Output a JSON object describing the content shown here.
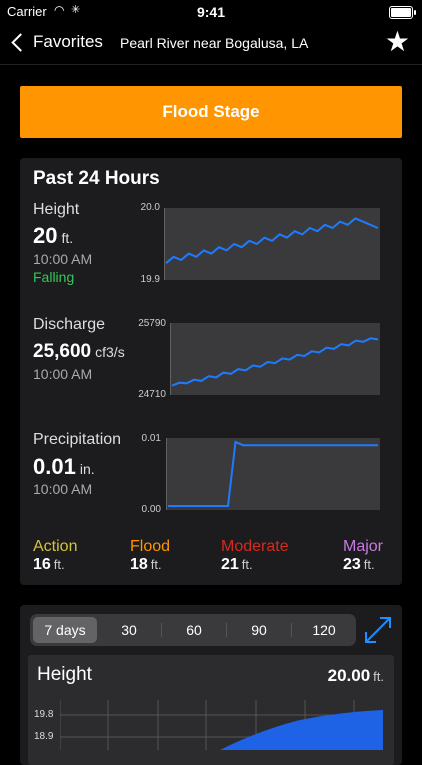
{
  "status": {
    "carrier": "Carrier",
    "time": "9:41"
  },
  "nav": {
    "back_label": "Favorites",
    "title": "Pearl River near Bogalusa, LA",
    "star_icon": "star-icon"
  },
  "banner": {
    "label": "Flood Stage",
    "color": "#ff9500"
  },
  "past24": {
    "title": "Past 24 Hours",
    "height": {
      "label": "Height",
      "value": "20",
      "unit": "ft.",
      "time": "10:00 AM",
      "trend": "Falling",
      "ymax": "20.0",
      "ymin": "19.9"
    },
    "discharge": {
      "label": "Discharge",
      "value": "25,600",
      "unit": "cf3/s",
      "time": "10:00 AM",
      "ymax": "25790",
      "ymin": "24710"
    },
    "precip": {
      "label": "Precipitation",
      "value": "0.01",
      "unit": "in.",
      "time": "10:00 AM",
      "ymax": "0.01",
      "ymin": "0.00"
    }
  },
  "levels": [
    {
      "name": "Action",
      "value": "16",
      "unit": "ft.",
      "color": "#d4c23a"
    },
    {
      "name": "Flood",
      "value": "18",
      "unit": "ft.",
      "color": "#ff9500"
    },
    {
      "name": "Moderate",
      "value": "21",
      "unit": "ft.",
      "color": "#d62a1e"
    },
    {
      "name": "Major",
      "value": "23",
      "unit": "ft.",
      "color": "#c67ae0"
    }
  ],
  "range": {
    "options": [
      "7 days",
      "30",
      "60",
      "90",
      "120"
    ],
    "selected": "7 days"
  },
  "history": {
    "title": "Height",
    "value": "20.00",
    "unit": "ft.",
    "yticks": [
      "19.8",
      "18.9"
    ]
  },
  "chart_data": [
    {
      "type": "line",
      "title": "Height",
      "ylim": [
        19.9,
        20.0
      ],
      "values": [
        19.92,
        19.93,
        19.925,
        19.935,
        19.93,
        19.94,
        19.935,
        19.945,
        19.94,
        19.95,
        19.945,
        19.955,
        19.95,
        19.96,
        19.955,
        19.965,
        19.96,
        19.97,
        19.965,
        19.975,
        19.97,
        19.98,
        19.975,
        19.985,
        19.98,
        19.99,
        19.985,
        19.98,
        19.975
      ]
    },
    {
      "type": "line",
      "title": "Discharge",
      "ylim": [
        24710,
        25790
      ],
      "values": [
        24800,
        24850,
        24840,
        24900,
        24880,
        24960,
        24940,
        25020,
        25000,
        25080,
        25060,
        25140,
        25120,
        25200,
        25180,
        25260,
        25240,
        25320,
        25300,
        25380,
        25360,
        25440,
        25420,
        25500,
        25480,
        25560,
        25540,
        25600,
        25580
      ]
    },
    {
      "type": "line",
      "title": "Precipitation",
      "ylim": [
        0.0,
        0.01
      ],
      "values": [
        0,
        0,
        0,
        0,
        0,
        0,
        0,
        0,
        0.0,
        0.01,
        0.0095,
        0.0095,
        0.0095,
        0.0095,
        0.0095,
        0.0095,
        0.0095,
        0.0095,
        0.0095,
        0.0095,
        0.0095,
        0.0095,
        0.0095,
        0.0095,
        0.0095,
        0.0095,
        0.0095,
        0.0095,
        0.0095
      ]
    }
  ]
}
